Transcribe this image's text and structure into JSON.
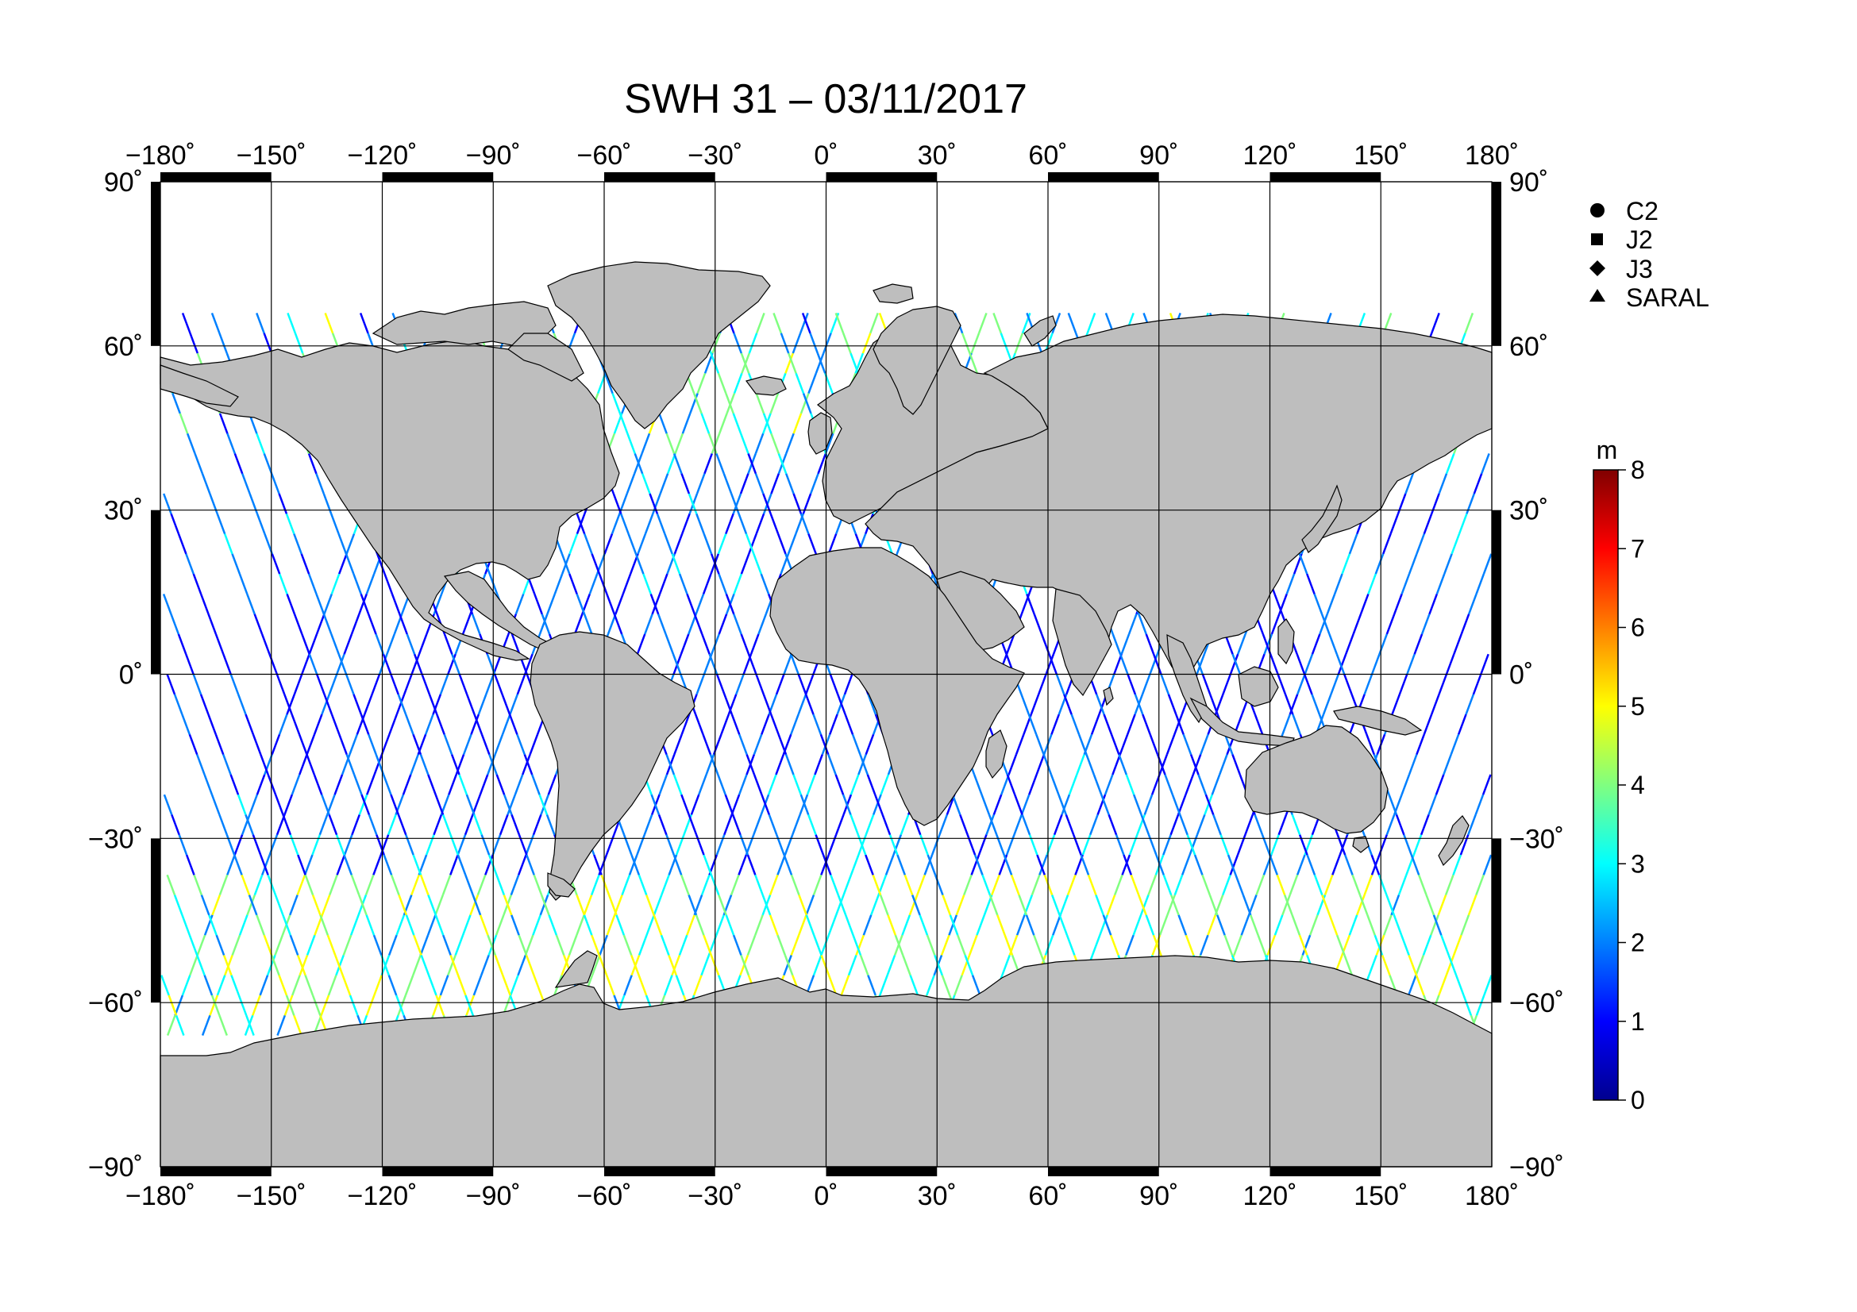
{
  "title": "SWH 31 – 03/11/2017",
  "x_ticks": [
    "−180˚",
    "−150˚",
    "−120˚",
    "−90˚",
    "−60˚",
    "−30˚",
    "0˚",
    "30˚",
    "60˚",
    "90˚",
    "120˚",
    "150˚",
    "180˚"
  ],
  "y_ticks_left": [
    "90˚",
    "60˚",
    "30˚",
    "0˚",
    "−30˚",
    "−60˚",
    "−90˚"
  ],
  "y_ticks_right": [
    "90˚",
    "60˚",
    "30˚",
    "0˚",
    "−30˚",
    "−60˚",
    "−90˚"
  ],
  "legend": {
    "items": [
      {
        "label": "C2",
        "marker": "circle-marker"
      },
      {
        "label": "J2",
        "marker": "square-marker"
      },
      {
        "label": "J3",
        "marker": "diamond-marker"
      },
      {
        "label": "SARAL",
        "marker": "triangle-marker"
      }
    ]
  },
  "colorbar": {
    "unit": "m",
    "ticks": [
      "8",
      "7",
      "6",
      "5",
      "4",
      "3",
      "2",
      "1",
      "0"
    ],
    "min": 0,
    "max": 8,
    "colors": [
      "#00008f",
      "#0000ff",
      "#0080ff",
      "#00ffff",
      "#80ff80",
      "#ffff00",
      "#ff8000",
      "#ff0000",
      "#800000"
    ]
  },
  "map_extent": {
    "lon": [
      -180,
      180
    ],
    "lat": [
      -90,
      90
    ]
  },
  "colors": {
    "land": "#bebebe",
    "ocean": "#ffffff",
    "frame": "#000000"
  }
}
